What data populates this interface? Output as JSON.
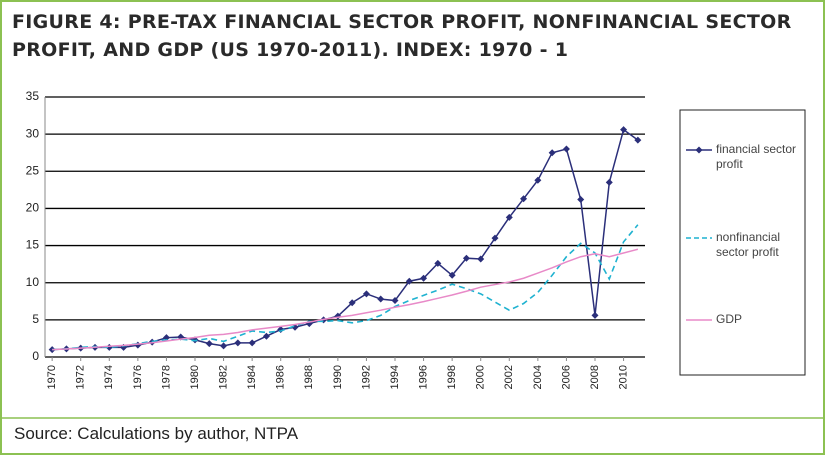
{
  "chart_data": {
    "type": "line",
    "title": "FIGURE 4: PRE-TAX FINANCIAL SECTOR PROFIT, NONFINANCIAL SECTOR PROFIT, AND GDP (US 1970-2011).  INDEX: 1970 - 1",
    "source": "Source: Calculations by author, NTPA",
    "x": [
      1970,
      1971,
      1972,
      1973,
      1974,
      1975,
      1976,
      1977,
      1978,
      1979,
      1980,
      1981,
      1982,
      1983,
      1984,
      1985,
      1986,
      1987,
      1988,
      1989,
      1990,
      1991,
      1992,
      1993,
      1994,
      1995,
      1996,
      1997,
      1998,
      1999,
      2000,
      2001,
      2002,
      2003,
      2004,
      2005,
      2006,
      2007,
      2008,
      2009,
      2010,
      2011
    ],
    "series": [
      {
        "name": "financial sector profit",
        "color": "#2b2f7a",
        "dash": false,
        "marker": true,
        "values": [
          1,
          1.1,
          1.2,
          1.3,
          1.3,
          1.3,
          1.6,
          2.0,
          2.6,
          2.7,
          2.3,
          1.8,
          1.5,
          1.9,
          1.9,
          2.8,
          3.7,
          4.0,
          4.5,
          5.0,
          5.5,
          7.3,
          8.5,
          7.8,
          7.6,
          10.2,
          10.6,
          12.6,
          11.0,
          13.3,
          13.2,
          16.0,
          18.8,
          21.3,
          23.8,
          27.5,
          28.0,
          21.2,
          5.6,
          23.5,
          30.6,
          29.2
        ]
      },
      {
        "name": "nonfinancial sector profit",
        "color": "#1fb2d0",
        "dash": true,
        "marker": false,
        "values": [
          1,
          1.1,
          1.3,
          1.4,
          1.3,
          1.5,
          1.8,
          2.1,
          2.3,
          2.4,
          2.2,
          2.5,
          2.1,
          2.8,
          3.5,
          3.3,
          3.5,
          4.2,
          4.8,
          4.8,
          4.9,
          4.6,
          4.9,
          5.6,
          6.8,
          7.6,
          8.3,
          9.0,
          9.8,
          9.2,
          8.5,
          7.4,
          6.3,
          7.2,
          8.7,
          11.0,
          13.5,
          15.3,
          14.0,
          10.5,
          15.5,
          17.8
        ]
      },
      {
        "name": "GDP",
        "color": "#e88ac8",
        "dash": false,
        "marker": false,
        "values": [
          1,
          1.08,
          1.19,
          1.32,
          1.44,
          1.56,
          1.73,
          1.92,
          2.16,
          2.41,
          2.62,
          2.93,
          3.05,
          3.3,
          3.65,
          3.88,
          4.12,
          4.37,
          4.71,
          5.06,
          5.35,
          5.6,
          5.95,
          6.3,
          6.7,
          7.05,
          7.45,
          7.9,
          8.35,
          8.85,
          9.4,
          9.75,
          10.1,
          10.6,
          11.3,
          12.0,
          12.8,
          13.5,
          13.9,
          13.5,
          14.0,
          14.5
        ]
      }
    ],
    "xlim": [
      1969.5,
      2011.5
    ],
    "xticks": [
      1970,
      1972,
      1974,
      1976,
      1978,
      1980,
      1982,
      1984,
      1986,
      1988,
      1990,
      1992,
      1994,
      1996,
      1998,
      2000,
      2002,
      2004,
      2006,
      2008,
      2010
    ],
    "ylim": [
      0,
      35
    ],
    "yticks": [
      0,
      5,
      10,
      15,
      20,
      25,
      30,
      35
    ],
    "grid": true
  }
}
